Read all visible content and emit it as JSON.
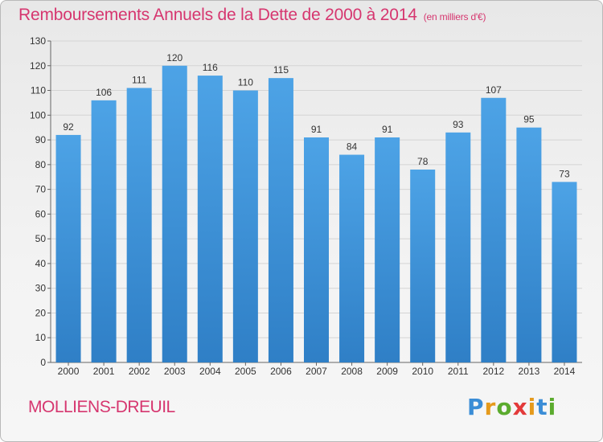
{
  "title": "Remboursements Annuels de la Dette de 2000 à 2014",
  "unit": "(en milliers d'€)",
  "commune": "MOLLIENS-DREUIL",
  "logo": {
    "letters": [
      "P",
      "r",
      "o",
      "x",
      "i",
      "t",
      "i"
    ],
    "colors": [
      "#3b8dd6",
      "#e59a1c",
      "#5bab2e",
      "#e33a3a",
      "#e59a1c",
      "#3b8dd6",
      "#5bab2e"
    ]
  },
  "colors": {
    "bar": "#4da3e6",
    "bar_dark": "#2f7fc6",
    "title": "#d6366f"
  },
  "chart_data": {
    "type": "bar",
    "title": "Remboursements Annuels de la Dette de 2000 à 2014",
    "xlabel": "",
    "ylabel": "",
    "categories": [
      "2000",
      "2001",
      "2002",
      "2003",
      "2004",
      "2005",
      "2006",
      "2007",
      "2008",
      "2009",
      "2010",
      "2011",
      "2012",
      "2013",
      "2014"
    ],
    "values": [
      92,
      106,
      111,
      120,
      116,
      110,
      115,
      91,
      84,
      91,
      78,
      93,
      107,
      95,
      73
    ],
    "ylim": [
      0,
      130
    ],
    "yticks": [
      0,
      10,
      20,
      30,
      40,
      50,
      60,
      70,
      80,
      90,
      100,
      110,
      120,
      130
    ],
    "grid": true
  }
}
